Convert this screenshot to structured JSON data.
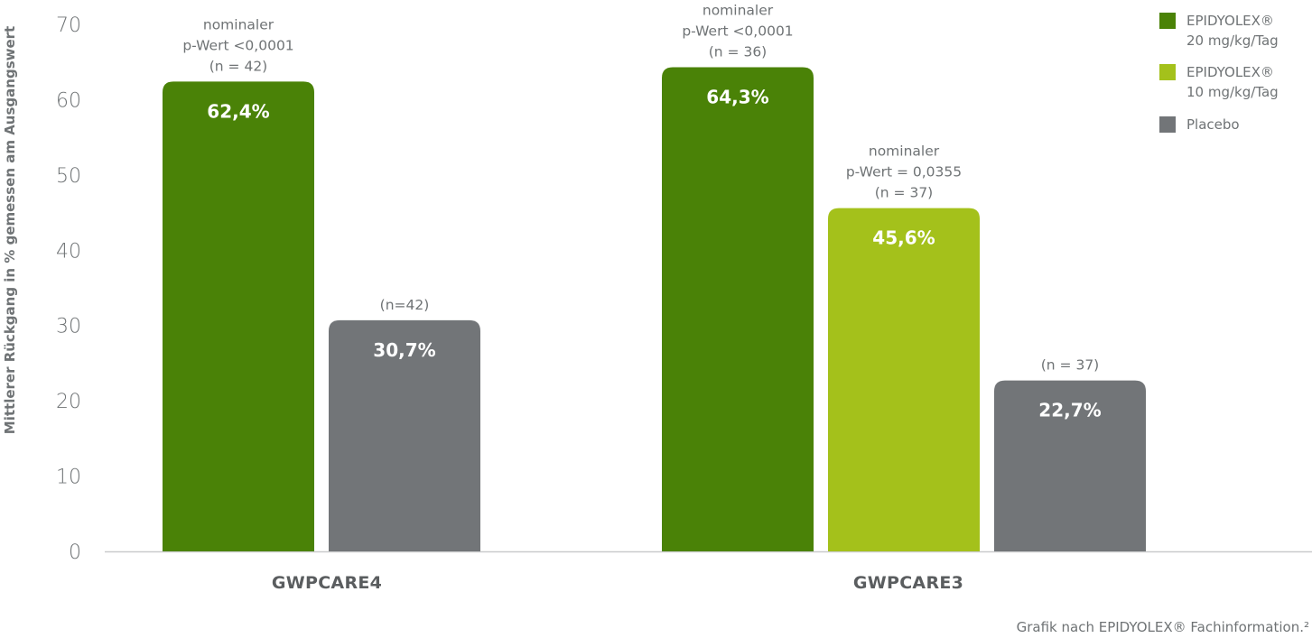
{
  "chart_data": {
    "type": "bar",
    "ylabel": "Mittlerer Rückgang in % gemessen am Ausgangswert",
    "ylim": [
      0,
      70
    ],
    "yticks": [
      "0",
      "10",
      "20",
      "30",
      "40",
      "50",
      "60",
      "70"
    ],
    "grid": false,
    "legend_position": "top-right",
    "categories": [
      "GWPCARE4",
      "GWPCARE3"
    ],
    "series": [
      {
        "key": "s20",
        "name_line1": "EPIDYOLEX®",
        "name_line2": "20 mg/kg/Tag",
        "color": "#4a8207"
      },
      {
        "key": "s10",
        "name_line1": "EPIDYOLEX®",
        "name_line2": "10 mg/kg/Tag",
        "color": "#a4c11b"
      },
      {
        "key": "placebo",
        "name_line1": "Placebo",
        "name_line2": "",
        "color": "#727578"
      }
    ],
    "groups": [
      {
        "category": "GWPCARE4",
        "bars": [
          {
            "series": "s20",
            "value": 62.4,
            "label": "62,4%",
            "annotation": [
              "nominaler",
              "p-Wert <0,0001",
              "(n = 42)"
            ]
          },
          {
            "series": "placebo",
            "value": 30.7,
            "label": "30,7%",
            "annotation": [
              "(n=42)"
            ]
          }
        ]
      },
      {
        "category": "GWPCARE3",
        "bars": [
          {
            "series": "s20",
            "value": 64.3,
            "label": "64,3%",
            "annotation": [
              "nominaler",
              "p-Wert <0,0001",
              "(n = 36)"
            ]
          },
          {
            "series": "s10",
            "value": 45.6,
            "label": "45,6%",
            "annotation": [
              "nominaler",
              "p-Wert = 0,0355",
              "(n = 37)"
            ]
          },
          {
            "series": "placebo",
            "value": 22.7,
            "label": "22,7%",
            "annotation": [
              "(n = 37)"
            ]
          }
        ]
      }
    ]
  },
  "footnote": "Grafik nach EPIDYOLEX® Fachinformation.²"
}
